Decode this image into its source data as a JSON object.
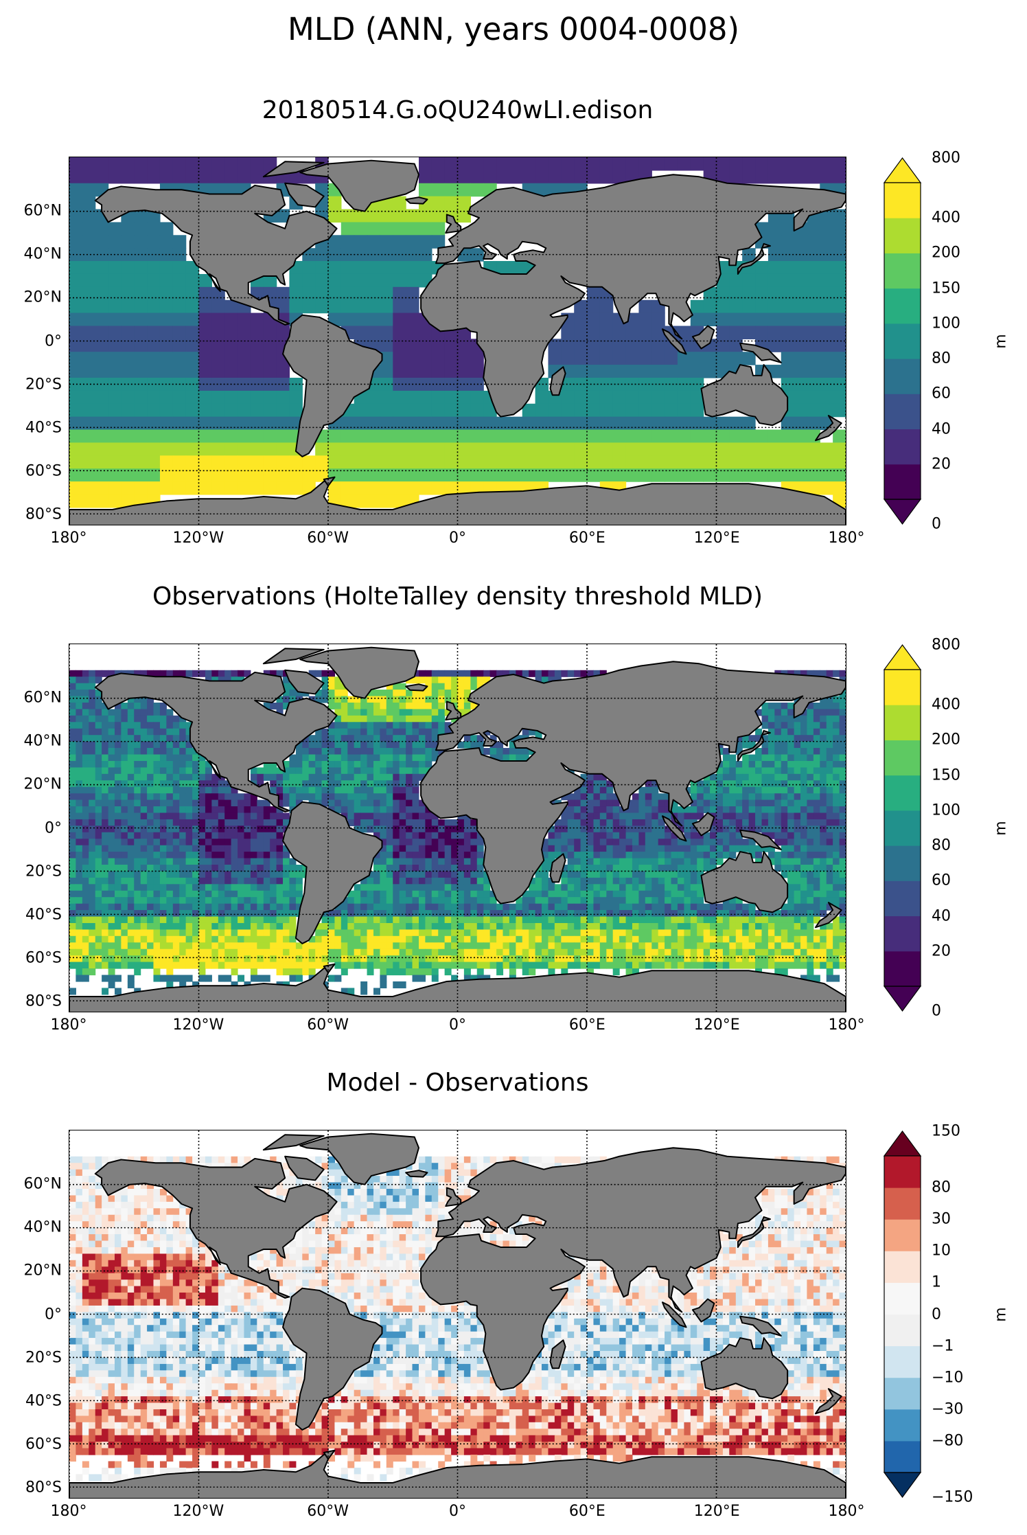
{
  "title": "MLD (ANN, years 0004-0008)",
  "lat_labels": [
    "60°N",
    "40°N",
    "20°N",
    "0°",
    "20°S",
    "40°S",
    "60°S",
    "80°S"
  ],
  "lat_values": [
    60,
    40,
    20,
    0,
    -20,
    -40,
    -60,
    -80
  ],
  "lon_labels": [
    "180°",
    "120°W",
    "60°W",
    "0°",
    "60°E",
    "120°E",
    "180°"
  ],
  "lon_values": [
    -180,
    -120,
    -60,
    0,
    60,
    120,
    180
  ],
  "extent": {
    "lon": [
      -180,
      180
    ],
    "lat": [
      -85,
      85
    ]
  },
  "grid": "dotted",
  "colors": {
    "land": "#808080",
    "coast": "#000000"
  },
  "panels": [
    {
      "title": "20180514.G.oQU240wLI.edison",
      "colorbar": {
        "unit": "m",
        "extend": "both",
        "levels": [
          "0",
          "20",
          "40",
          "60",
          "80",
          "100",
          "150",
          "200",
          "400",
          "800"
        ],
        "colors": [
          "#440154",
          "#472d7b",
          "#3b528b",
          "#2c728e",
          "#21918c",
          "#28ae80",
          "#5ec962",
          "#addc30",
          "#fde725"
        ],
        "under": "#440154",
        "over": "#fde725"
      }
    },
    {
      "title": "Observations (HolteTalley density threshold MLD)",
      "colorbar": {
        "unit": "m",
        "extend": "both",
        "levels": [
          "0",
          "20",
          "40",
          "60",
          "80",
          "100",
          "150",
          "200",
          "400",
          "800"
        ],
        "colors": [
          "#440154",
          "#472d7b",
          "#3b528b",
          "#2c728e",
          "#21918c",
          "#28ae80",
          "#5ec962",
          "#addc30",
          "#fde725"
        ],
        "under": "#440154",
        "over": "#fde725"
      }
    },
    {
      "title": "Model - Observations",
      "colorbar": {
        "unit": "m",
        "extend": "both",
        "levels": [
          "−150",
          "−80",
          "−30",
          "−10",
          "−1",
          "0",
          "1",
          "10",
          "30",
          "80",
          "150"
        ],
        "colors": [
          "#2166ac",
          "#4393c3",
          "#92c5de",
          "#d1e5f0",
          "#f0f0f0",
          "#f7f7f7",
          "#fbe3d6",
          "#f4a582",
          "#d6604d",
          "#b2182b"
        ],
        "under": "#053061",
        "over": "#67001f"
      }
    }
  ]
}
